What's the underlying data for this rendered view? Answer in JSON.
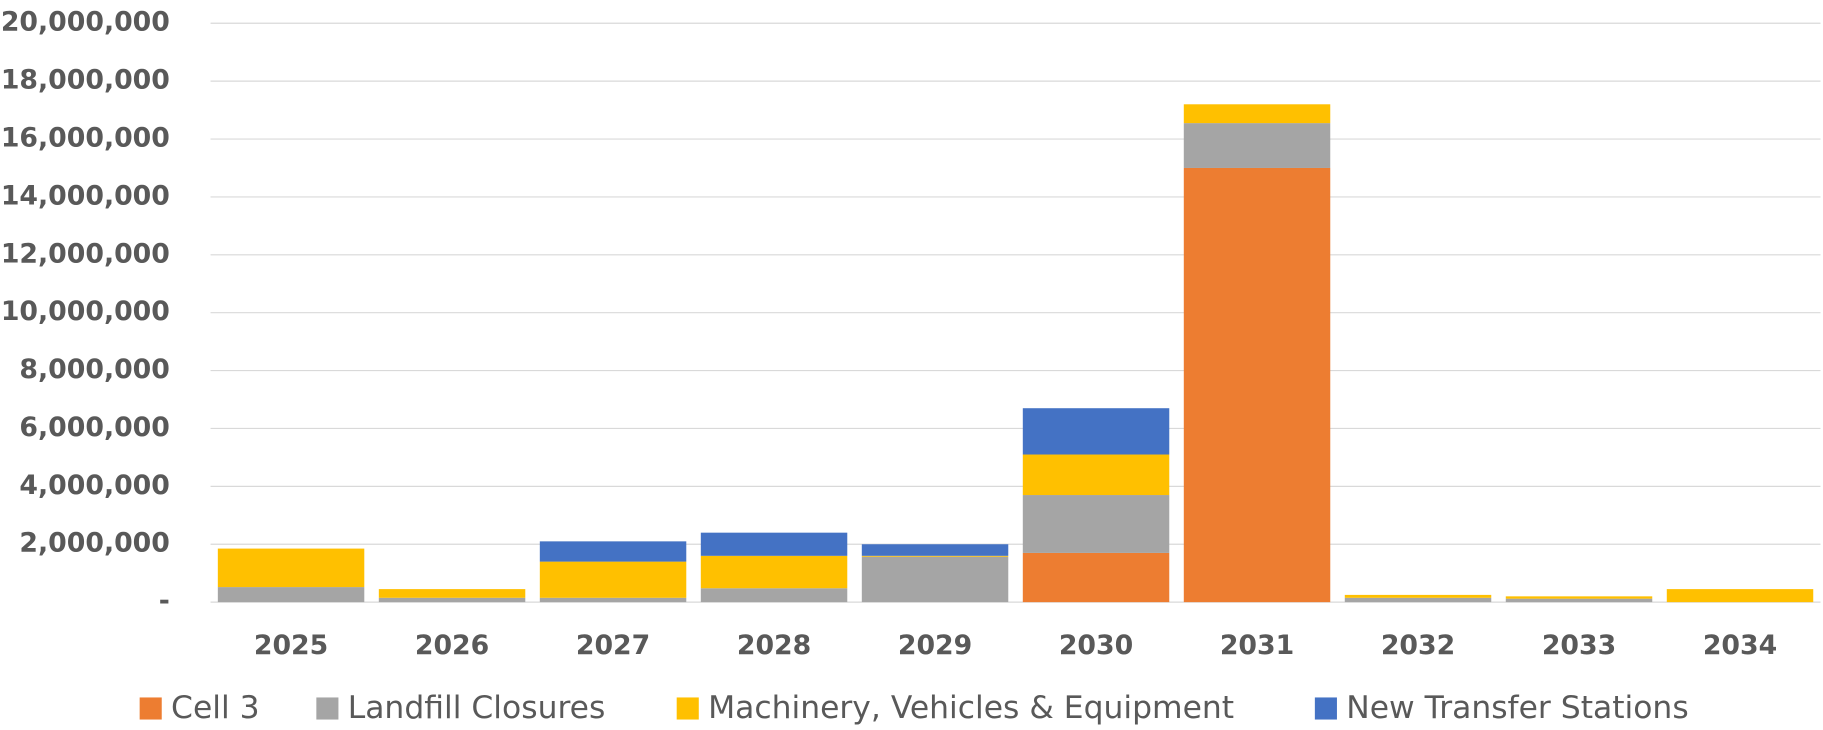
{
  "chart_data": {
    "type": "stacked_bar",
    "categories": [
      "2025",
      "2026",
      "2027",
      "2028",
      "2029",
      "2030",
      "2031",
      "2032",
      "2033",
      "2034"
    ],
    "series": [
      {
        "name": "Cell 3",
        "color": "#ed7d31",
        "values": [
          0,
          0,
          0,
          0,
          0,
          1700000,
          15000000,
          0,
          0,
          0
        ]
      },
      {
        "name": "Landfill Closures",
        "color": "#a5a5a5",
        "values": [
          520000,
          150000,
          150000,
          480000,
          1570000,
          2000000,
          1550000,
          150000,
          120000,
          0
        ]
      },
      {
        "name": "Machinery, Vehicles & Equipment",
        "color": "#ffc000",
        "values": [
          1330000,
          300000,
          1250000,
          1120000,
          30000,
          1400000,
          650000,
          100000,
          80000,
          450000
        ]
      },
      {
        "name": "New Transfer Stations",
        "color": "#4472c4",
        "values": [
          0,
          0,
          700000,
          800000,
          400000,
          1600000,
          0,
          0,
          0,
          0
        ]
      }
    ],
    "ylim": [
      0,
      20000000
    ],
    "yticks": [
      {
        "value": 0,
        "label": "-"
      },
      {
        "value": 2000000,
        "label": "2,000,000"
      },
      {
        "value": 4000000,
        "label": "4,000,000"
      },
      {
        "value": 6000000,
        "label": "6,000,000"
      },
      {
        "value": 8000000,
        "label": "8,000,000"
      },
      {
        "value": 10000000,
        "label": "10,000,000"
      },
      {
        "value": 12000000,
        "label": "12,000,000"
      },
      {
        "value": 14000000,
        "label": "14,000,000"
      },
      {
        "value": 16000000,
        "label": "16,000,000"
      },
      {
        "value": 18000000,
        "label": "18,000,000"
      },
      {
        "value": 20000000,
        "label": "20,000,000"
      }
    ],
    "grid": true,
    "legend": "bottom"
  }
}
